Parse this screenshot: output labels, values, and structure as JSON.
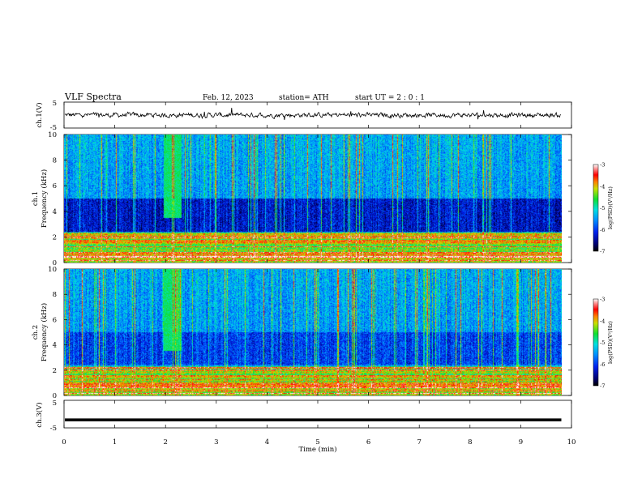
{
  "header": {
    "title": "VLF  Spectra",
    "date": "Feb. 12, 2023",
    "station": "station= ATH",
    "start_ut": "start  UT  =   2  : 0   : 1"
  },
  "chart_data": [
    {
      "type": "line",
      "panel": "ch1-waveform",
      "ylabel": "ch.1(V)",
      "ylim": [
        -5,
        5
      ],
      "yticks": [
        "5",
        "-5"
      ],
      "xlim": [
        0,
        10
      ],
      "xlabel": "",
      "data_extent_min": 9.8,
      "mean_level": 0,
      "noise_amplitude": 0.45,
      "color": "#000000"
    },
    {
      "type": "heatmap",
      "panel": "ch1-spectrogram",
      "ylabel": "ch.1\nFrequency  (kHz)",
      "ylabel_lines": [
        "ch.1",
        "Frequency  (kHz)"
      ],
      "ylim": [
        0,
        10
      ],
      "yticks": [
        "0",
        "2",
        "4",
        "6",
        "8",
        "10"
      ],
      "xlim": [
        0,
        10
      ],
      "data_extent_min": 9.8,
      "burst_window_min": [
        1.95,
        2.3
      ],
      "low_power_band_khz": [
        2.4,
        5.0
      ],
      "colorbar": {
        "label": "log(PSD)(V²/Hz)",
        "ticks": [
          "-3",
          "-4",
          "-5",
          "-6",
          "-7"
        ],
        "range": [
          -7,
          -3
        ]
      }
    },
    {
      "type": "heatmap",
      "panel": "ch2-spectrogram",
      "ylabel_lines": [
        "ch.2",
        "Frequency  (kHz)"
      ],
      "ylim": [
        0,
        10
      ],
      "yticks": [
        "0",
        "2",
        "4",
        "6",
        "8",
        "10"
      ],
      "xlim": [
        0,
        10
      ],
      "data_extent_min": 9.8,
      "burst_window_min": [
        1.95,
        2.3
      ],
      "low_power_band_khz": [
        2.4,
        5.0
      ],
      "colorbar": {
        "label": "log(PSD)(V²/Hz)",
        "ticks": [
          "-3",
          "-4",
          "-5",
          "-6",
          "-7"
        ],
        "range": [
          -7,
          -3
        ]
      }
    },
    {
      "type": "line",
      "panel": "ch3-waveform",
      "ylabel": "ch.3(V)",
      "ylim": [
        -5,
        5
      ],
      "yticks": [
        "5",
        "-5"
      ],
      "xlim": [
        0,
        10
      ],
      "xlabel": "Time  (min)",
      "xticks": [
        "0",
        "1",
        "2",
        "3",
        "4",
        "5",
        "6",
        "7",
        "8",
        "9",
        "10"
      ],
      "data_extent_min": 9.8,
      "mean_level": -2.1,
      "color": "#000000"
    }
  ]
}
